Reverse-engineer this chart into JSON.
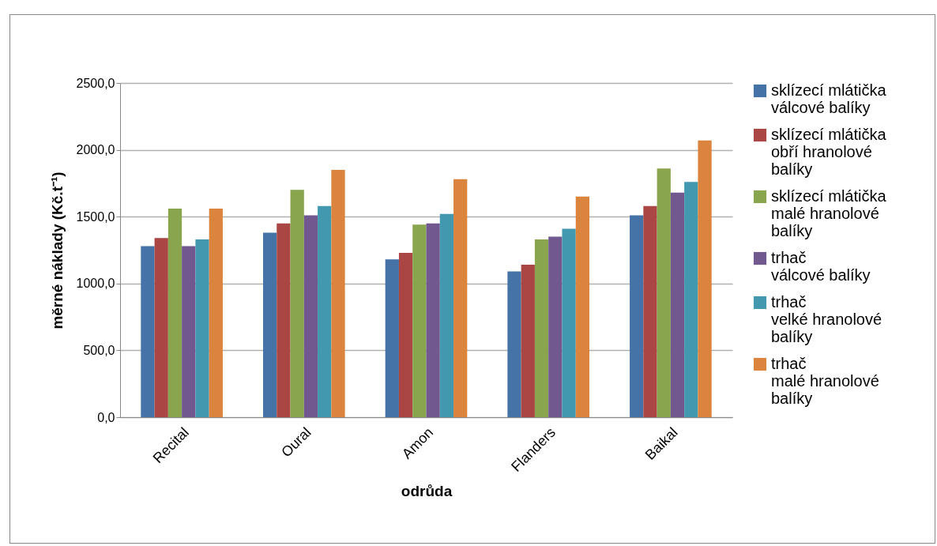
{
  "chart_data": {
    "type": "bar",
    "xlabel": "odrůda",
    "ylabel": "měrné náklady (Kč.t⁻¹)",
    "categories": [
      "Recital",
      "Oural",
      "Amon",
      "Flanders",
      "Baikal"
    ],
    "series": [
      {
        "name": "sklízecí mlátička\nválcové balíky",
        "color": "#4572a7",
        "values": [
          1280,
          1380,
          1180,
          1090,
          1510
        ]
      },
      {
        "name": "sklízecí mlátička\nobří hranolové\nbalíky",
        "color": "#aa4643",
        "values": [
          1340,
          1450,
          1230,
          1140,
          1580
        ]
      },
      {
        "name": "sklízecí mlátička\nmalé hranolové\nbalíky",
        "color": "#89a54e",
        "values": [
          1560,
          1700,
          1440,
          1330,
          1860
        ]
      },
      {
        "name": "trhač\nválcové balíky",
        "color": "#71588f",
        "values": [
          1280,
          1510,
          1450,
          1350,
          1680
        ]
      },
      {
        "name": "trhač\nvelké hranolové\nbalíky",
        "color": "#4198af",
        "values": [
          1330,
          1580,
          1520,
          1410,
          1760
        ]
      },
      {
        "name": "trhač\nmalé hranolové\nbalíky",
        "color": "#db843d",
        "values": [
          1560,
          1850,
          1780,
          1650,
          2070
        ]
      }
    ],
    "ylim": [
      0,
      2500
    ],
    "yticks": [
      {
        "value": 0,
        "label": "0,0"
      },
      {
        "value": 500,
        "label": "500,0"
      },
      {
        "value": 1000,
        "label": "1000,0"
      },
      {
        "value": 1500,
        "label": "1500,0"
      },
      {
        "value": 2000,
        "label": "2000,0"
      },
      {
        "value": 2500,
        "label": "2500,0"
      }
    ],
    "grid": "y",
    "legend": "right"
  }
}
